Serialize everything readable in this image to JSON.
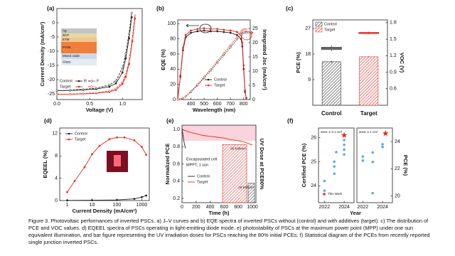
{
  "chart_data": [
    {
      "type": "line",
      "label": "(a)",
      "xlabel": "Voltage (V)",
      "ylabel": "Current Density (mA/cm²)",
      "xlim": [
        0,
        1.3
      ],
      "xticks": [
        {
          "value": 0,
          "label": "0.0"
        },
        0.5,
        {
          "value": 1,
          "label": "1.0"
        }
      ],
      "ylim": [
        -27,
        5
      ],
      "yticks": [
        0,
        -5,
        -10,
        -15,
        -20,
        -25
      ],
      "markers": true,
      "scan_labels": [
        "R",
        "F"
      ],
      "inset_layers": [
        "Ag",
        "BCP",
        "ETM",
        "PVSK",
        "Mixed oxide",
        "Glass"
      ],
      "series": [
        {
          "name": "Control",
          "color": "#222222",
          "x": [
            0,
            0.2,
            0.4,
            0.6,
            0.8,
            0.9,
            1.0,
            1.05,
            1.1,
            1.14
          ],
          "values": [
            -23.9,
            -23.8,
            -23.6,
            -23.3,
            -22.5,
            -21.3,
            -17.5,
            -12.5,
            -5.5,
            2
          ],
          "forward_values": [
            -23.9,
            -23.7,
            -23.4,
            -23,
            -21.9,
            -20.4,
            -15.8,
            -10.8,
            -3.8,
            3.5
          ]
        },
        {
          "name": "Target",
          "color": "#e8281e",
          "x": [
            0,
            0.2,
            0.4,
            0.6,
            0.8,
            0.9,
            1.0,
            1.05,
            1.1,
            1.15,
            1.19
          ],
          "values": [
            -25.2,
            -25.1,
            -25,
            -24.8,
            -24.3,
            -23.6,
            -21.5,
            -19,
            -14.5,
            -6.5,
            1.5
          ],
          "forward_values": [
            -25.2,
            -25.1,
            -24.9,
            -24.6,
            -24,
            -23.2,
            -20.8,
            -18.2,
            -13.5,
            -5.5,
            2.5
          ]
        }
      ]
    },
    {
      "type": "line",
      "label": "(b)",
      "xlabel": "Wavelength (nm)",
      "ylabel": "EQE (%)",
      "y2label": "Integrated Jsc (mA/cm²)",
      "xlim": [
        300,
        850
      ],
      "xticks": [
        400,
        500,
        600,
        700,
        800
      ],
      "ylim": [
        0,
        105
      ],
      "yticks": [
        0,
        20,
        40,
        60,
        80,
        100
      ],
      "y2lim": [
        0,
        28
      ],
      "y2ticks": [
        0,
        5,
        10,
        15,
        20,
        25
      ],
      "markers": true,
      "series": [
        {
          "name": "Control",
          "color": "#222222",
          "x": [
            300,
            320,
            340,
            360,
            400,
            450,
            500,
            550,
            600,
            650,
            700,
            750,
            780,
            790,
            800,
            810,
            820
          ],
          "values": [
            0,
            30,
            65,
            82,
            88,
            90,
            91,
            90,
            90,
            89,
            88,
            85,
            80,
            70,
            40,
            10,
            2
          ]
        },
        {
          "name": "Target",
          "color": "#e8281e",
          "x": [
            300,
            320,
            340,
            360,
            400,
            450,
            500,
            550,
            600,
            650,
            700,
            750,
            780,
            790,
            800,
            810,
            820
          ],
          "values": [
            0,
            32,
            68,
            85,
            91,
            93,
            94,
            93,
            93,
            92,
            91,
            89,
            85,
            75,
            45,
            12,
            2
          ]
        },
        {
          "color": "#222222",
          "axis": "y2",
          "x": [
            300,
            320,
            340,
            360,
            400,
            450,
            500,
            550,
            600,
            650,
            700,
            750,
            780,
            790,
            800,
            810,
            820
          ],
          "values": [
            0,
            0.1,
            0.5,
            1.1,
            2.7,
            5.0,
            7.6,
            10.2,
            12.9,
            15.6,
            18.4,
            21.2,
            22.8,
            23.3,
            23.5,
            23.6,
            23.6
          ]
        },
        {
          "color": "#e8281e",
          "axis": "y2",
          "x": [
            300,
            320,
            340,
            360,
            400,
            450,
            500,
            550,
            600,
            650,
            700,
            750,
            780,
            790,
            800,
            810,
            820
          ],
          "values": [
            0,
            0.1,
            0.5,
            1.2,
            2.9,
            5.3,
            8.0,
            10.7,
            13.5,
            16.3,
            19.2,
            22.1,
            23.8,
            24.4,
            24.6,
            24.7,
            24.7
          ]
        }
      ]
    },
    {
      "type": "box_bar",
      "label": "(c)",
      "ylabel": "PCE (%)",
      "y2label": "VOC (V)",
      "categories": [
        "Control",
        "Target"
      ],
      "ylim": [
        0,
        30
      ],
      "yticks": [
        9,
        18,
        27
      ],
      "y2lim": [
        0.3,
        1.85
      ],
      "y2ticks": [
        0.6,
        0.9,
        1.2,
        1.5,
        1.8
      ],
      "series": [
        {
          "name": "Control",
          "color": "#333333",
          "pce_box": [
            19.0,
            19.6,
            20.0,
            20.4,
            21.0
          ],
          "voc": 1.09,
          "voc_error": 0.02
        },
        {
          "name": "Target",
          "color": "#e8281e",
          "pce_box": [
            24.9,
            25.2,
            25.4,
            25.6,
            25.9
          ],
          "voc": 1.18,
          "voc_error": 0.01
        }
      ]
    },
    {
      "type": "line",
      "label": "(d)",
      "xlabel": "Current Density (mA/cm²)",
      "ylabel": "EQEEL (%)",
      "xlog": true,
      "xlim": [
        0.5,
        2000
      ],
      "xticks": [
        1,
        10,
        100,
        1000
      ],
      "ylim": [
        0,
        13
      ],
      "yticks": [
        0,
        4,
        8,
        12
      ],
      "markers": true,
      "series": [
        {
          "name": "Control",
          "color": "#222222",
          "x": [
            1,
            10,
            100,
            500,
            1000,
            1500
          ],
          "values": [
            0.02,
            0.05,
            0.1,
            0.3,
            0.6,
            0.9
          ]
        },
        {
          "name": "Target",
          "color": "#e8281e",
          "x": [
            1,
            2,
            5,
            10,
            20,
            50,
            100,
            200,
            500,
            1000,
            1500
          ],
          "values": [
            1.5,
            3.5,
            6,
            8.3,
            9.8,
            11,
            11.3,
            11.3,
            10.8,
            9.6,
            8.2
          ]
        }
      ]
    },
    {
      "type": "line",
      "label": "(e)",
      "xlabel": "Time (h)",
      "ylabel": "Normalized PCE",
      "y2label": "UV Dose at PCE80%",
      "xlim": [
        0,
        1050
      ],
      "xticks": [
        0,
        200,
        400,
        600,
        800,
        1000
      ],
      "ylim": [
        0.15,
        1.05
      ],
      "yticks": [
        0.2,
        0.4,
        0.6,
        0.8,
        {
          "value": 1,
          "label": "1.0"
        }
      ],
      "annotations": [
        "Encapsulated cell",
        "MPPT, 1 sun"
      ],
      "series": [
        {
          "name": "Control",
          "color": "#222222",
          "x": [
            0,
            10,
            20,
            30,
            40,
            50
          ],
          "values": [
            1.0,
            0.96,
            0.9,
            0.85,
            0.81,
            0.78
          ]
        },
        {
          "name": "Target",
          "color": "#e8281e",
          "x": [
            0,
            100,
            200,
            300,
            400,
            500,
            600,
            700,
            800,
            900,
            1000
          ],
          "values": [
            1.0,
            0.97,
            0.95,
            0.93,
            0.92,
            0.91,
            0.9,
            0.88,
            0.87,
            0.85,
            0.82
          ]
        }
      ],
      "uv_dose": {
        "y2lim": [
          0,
          80
        ],
        "values": [
          60,
          20
        ],
        "value_labels": [
          "60 kWh/m²",
          "20 kWh/m²"
        ],
        "colors": [
          "#e8281e",
          "#333333"
        ]
      }
    },
    {
      "type": "scatter",
      "label": "(f)",
      "xlabel": "Year",
      "ylabel": "Certified PCE (%)",
      "annotation": "area: ≤ 0.1 cm²",
      "legend": "This Work",
      "xlim": [
        2021.4,
        2025
      ],
      "xticks": [
        2022,
        2024
      ],
      "ylim": [
        23.3,
        26.4
      ],
      "yticks": [
        24,
        25,
        26
      ],
      "color": "#5aaee0",
      "x": [
        2022,
        2022,
        2023,
        2023,
        2023,
        2023.2,
        2024,
        2024,
        2024,
        2024
      ],
      "values": [
        23.8,
        24.2,
        24.5,
        24.8,
        25.0,
        25.4,
        25.3,
        25.5,
        25.7,
        25.9
      ],
      "star": {
        "x": 2024,
        "value": 26.1,
        "color": "#e8281e"
      }
    },
    {
      "type": "scatter",
      "ylabel": "PCE (%)",
      "annotation": "area: ≥ 1 cm²",
      "xlim": [
        2021.4,
        2025
      ],
      "xticks": [
        2022,
        2024
      ],
      "ylim": [
        19.5,
        25
      ],
      "yticks": [
        20,
        22,
        24
      ],
      "color": "#5aaee0",
      "x": [
        2022,
        2022,
        2023,
        2023,
        2023,
        2024,
        2024
      ],
      "values": [
        22.6,
        22.9,
        20.2,
        22.5,
        23.2,
        23.6,
        23.8
      ],
      "star": {
        "x": 2024.3,
        "value": 24.6,
        "color": "#e8281e"
      }
    }
  ],
  "caption": "Figure 3. Photovoltaic performances of inverted PSCs. a) J–V curves and b) EQE spectra of inverted PSCs without (control) and with additives (target). c) The distribution of PCE and VOC values. d) EQEEL spectra of PSCs operating in light-emitting diode mode. e) photostability of PSCs at the maximum power point (MPP) under one sun equivalent illumination, and bar figure representing the UV irradiation doses for PSCs reaching the 80% initial PCEs. f) Statistical diagram of the PCEs from recently reported single junction inverted PSCs."
}
